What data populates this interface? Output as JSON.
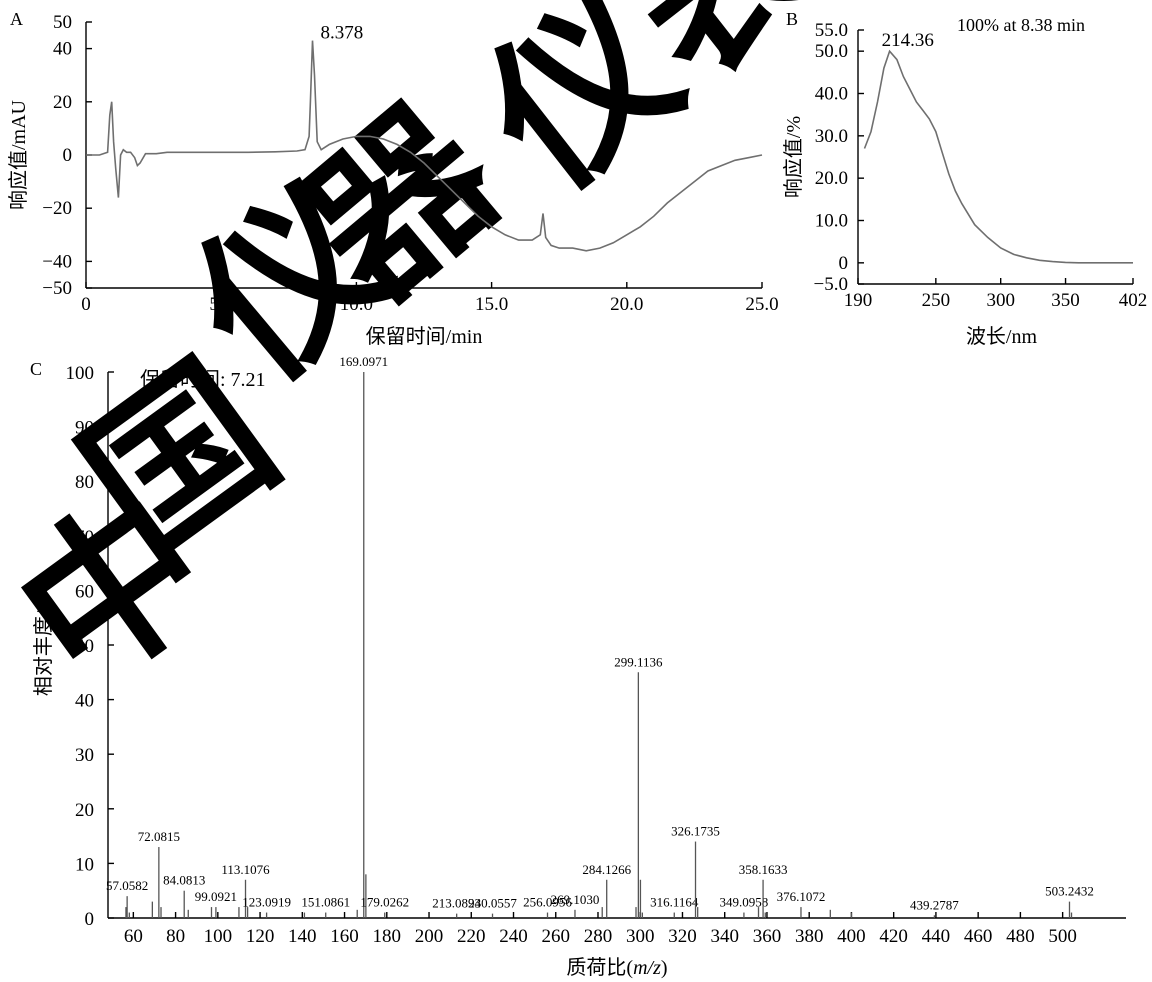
{
  "panels": {
    "a": "A",
    "b": "B",
    "c": "C"
  },
  "chart_data": [
    {
      "id": "A",
      "type": "line",
      "xlabel": "保留时间/min",
      "ylabel": "响应值/mAU",
      "xlim": [
        0,
        25.0
      ],
      "ylim": [
        -50,
        50
      ],
      "x_ticks": [
        "0",
        "5.0",
        "10.0",
        "15.0",
        "20.0",
        "25.0"
      ],
      "y_ticks": [
        "50",
        "40",
        "20",
        "0",
        "−20",
        "−40",
        "−50"
      ],
      "peak_label": "8.378",
      "series": [
        {
          "x": [
            0,
            0.5,
            0.8,
            0.88,
            0.95,
            1.02,
            1.1,
            1.2,
            1.28,
            1.38,
            1.5,
            1.65,
            1.8,
            1.9,
            2.0,
            2.2,
            2.6,
            3.0,
            4.0,
            5.0,
            6.0,
            7.0,
            7.8,
            8.1,
            8.25,
            8.3,
            8.378,
            8.45,
            8.55,
            8.7,
            9.0,
            9.5,
            10.0,
            10.5,
            11.0,
            11.5,
            12.0,
            12.5,
            13.0,
            13.5,
            14.0,
            14.5,
            15.0,
            15.5,
            16.0,
            16.5,
            16.8,
            16.9,
            17.0,
            17.2,
            17.5,
            18.0,
            18.5,
            19.0,
            19.5,
            20.0,
            20.5,
            21.0,
            21.5,
            22.0,
            22.5,
            23.0,
            23.5,
            24.0,
            24.5,
            25.0
          ],
          "y": [
            0,
            0,
            1,
            15,
            20,
            5,
            -5,
            -16,
            0,
            2,
            1,
            1,
            -1,
            -4,
            -3,
            0.5,
            0.5,
            1,
            1,
            1,
            1,
            1.2,
            1.5,
            2,
            7,
            20,
            43,
            30,
            5,
            2,
            4,
            6,
            7,
            7,
            6,
            4,
            1,
            -3,
            -8,
            -13,
            -18,
            -23,
            -27,
            -30,
            -32,
            -32,
            -30,
            -22,
            -31,
            -34,
            -35,
            -35,
            -36,
            -35,
            -33,
            -30,
            -27,
            -23,
            -18,
            -14,
            -10,
            -6,
            -4,
            -2,
            -1,
            0
          ]
        }
      ]
    },
    {
      "id": "B",
      "type": "line",
      "xlabel": "波长/nm",
      "ylabel": "响应值/%",
      "xlim": [
        190,
        402
      ],
      "ylim": [
        -5,
        55
      ],
      "x_ticks": [
        "190",
        "250",
        "300",
        "350",
        "402"
      ],
      "y_ticks": [
        "55.0",
        "50.0",
        "40.0",
        "30.0",
        "20.0",
        "10.0",
        "0",
        "−5.0"
      ],
      "peak_label": "214.36",
      "note": "100% at 8.38 min",
      "series": [
        {
          "x": [
            195,
            200,
            205,
            210,
            214.36,
            220,
            225,
            230,
            235,
            240,
            245,
            250,
            255,
            260,
            265,
            270,
            280,
            290,
            300,
            310,
            320,
            330,
            340,
            350,
            360,
            370,
            380,
            390,
            402
          ],
          "y": [
            27,
            31,
            38,
            46,
            50,
            48,
            44,
            41,
            38,
            36,
            34,
            31,
            26,
            21,
            17,
            14,
            9,
            6,
            3.5,
            2,
            1.2,
            0.6,
            0.3,
            0.1,
            0,
            0,
            0,
            0,
            0
          ]
        }
      ]
    },
    {
      "id": "C",
      "type": "bar",
      "xlabel_prefix": "质荷比(",
      "xlabel_italic": "m/z",
      "xlabel_suffix": ")",
      "ylabel": "相对丰度/%",
      "annotation": "保留时间: 7.21",
      "xlim": [
        48,
        530
      ],
      "ylim": [
        0,
        100
      ],
      "x_ticks": [
        "60",
        "80",
        "100",
        "120",
        "140",
        "160",
        "180",
        "200",
        "220",
        "240",
        "260",
        "280",
        "300",
        "320",
        "340",
        "360",
        "380",
        "400",
        "420",
        "440",
        "460",
        "480",
        "500"
      ],
      "y_ticks": [
        "0",
        "10",
        "20",
        "30",
        "40",
        "50",
        "60",
        "70",
        "80",
        "90",
        "100"
      ],
      "peaks": [
        {
          "mz": 56.5,
          "ab": 2
        },
        {
          "mz": 57.0582,
          "ab": 4,
          "label": "57.0582"
        },
        {
          "mz": 58.1,
          "ab": 1
        },
        {
          "mz": 69.0,
          "ab": 3
        },
        {
          "mz": 72.0815,
          "ab": 13,
          "label": "72.0815"
        },
        {
          "mz": 73.1,
          "ab": 2
        },
        {
          "mz": 84.0813,
          "ab": 5,
          "label": "84.0813"
        },
        {
          "mz": 86.0,
          "ab": 1.5
        },
        {
          "mz": 97.0,
          "ab": 2
        },
        {
          "mz": 99.0921,
          "ab": 2,
          "label": "99.0921"
        },
        {
          "mz": 110.0,
          "ab": 2
        },
        {
          "mz": 113.1076,
          "ab": 7,
          "label": "113.1076"
        },
        {
          "mz": 114.1,
          "ab": 2
        },
        {
          "mz": 123.0919,
          "ab": 1,
          "label": "123.0919"
        },
        {
          "mz": 141.0,
          "ab": 1
        },
        {
          "mz": 151.0861,
          "ab": 1,
          "label": "151.0861"
        },
        {
          "mz": 166.0,
          "ab": 1.5
        },
        {
          "mz": 169.0971,
          "ab": 100,
          "label": "169.0971"
        },
        {
          "mz": 170.1,
          "ab": 8
        },
        {
          "mz": 179.0262,
          "ab": 1,
          "label": "179.0262"
        },
        {
          "mz": 213.0894,
          "ab": 0.8,
          "label": "213.0894"
        },
        {
          "mz": 230.0557,
          "ab": 0.8,
          "label": "230.0557"
        },
        {
          "mz": 256.0956,
          "ab": 1,
          "label": "256.0956"
        },
        {
          "mz": 269.103,
          "ab": 1.5,
          "label": "269.1030"
        },
        {
          "mz": 282.0,
          "ab": 2
        },
        {
          "mz": 284.1266,
          "ab": 7,
          "label": "284.1266"
        },
        {
          "mz": 298.0,
          "ab": 2
        },
        {
          "mz": 299.1136,
          "ab": 45,
          "label": "299.1136"
        },
        {
          "mz": 300.1,
          "ab": 7
        },
        {
          "mz": 301.0,
          "ab": 1
        },
        {
          "mz": 316.1164,
          "ab": 1,
          "label": "316.1164"
        },
        {
          "mz": 326.1735,
          "ab": 14,
          "label": "326.1735"
        },
        {
          "mz": 327.2,
          "ab": 2
        },
        {
          "mz": 349.0958,
          "ab": 1,
          "label": "349.0958"
        },
        {
          "mz": 356.0,
          "ab": 2
        },
        {
          "mz": 358.1633,
          "ab": 7,
          "label": "358.1633"
        },
        {
          "mz": 359.2,
          "ab": 1
        },
        {
          "mz": 376.1072,
          "ab": 2,
          "label": "376.1072"
        },
        {
          "mz": 390.0,
          "ab": 1.5
        },
        {
          "mz": 400.0,
          "ab": 1
        },
        {
          "mz": 439.2787,
          "ab": 0.5,
          "label": "439.2787"
        },
        {
          "mz": 503.2432,
          "ab": 3,
          "label": "503.2432"
        },
        {
          "mz": 504.2,
          "ab": 1
        }
      ]
    }
  ],
  "watermark": [
    "中",
    "国",
    "仪",
    "器",
    "仪",
    "表"
  ]
}
